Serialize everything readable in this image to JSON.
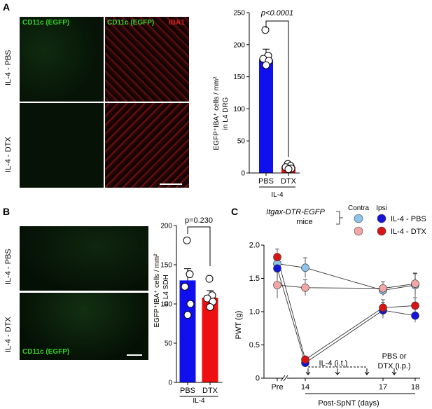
{
  "panels": {
    "A": {
      "letter": "A",
      "col_labels": [
        "CD11c (EGFP)",
        "CD11c (EGFP)",
        "IBA1"
      ],
      "row_labels": [
        "IL-4 - PBS",
        "IL-4 - DTX"
      ],
      "chart": {
        "ylabel_line1": "EGFP⁺IBA⁺ cells / mm²",
        "ylabel_line2": "in L4 DRG",
        "pvalue": "p<0.0001",
        "group_label": "IL-4"
      }
    },
    "B": {
      "letter": "B",
      "row_labels": [
        "IL-4 - PBS",
        "IL-4 - DTX"
      ],
      "image_label": "CD11c (EGFP)",
      "chart": {
        "ylabel_line1": "EGFP⁺IBA⁺ cells / mm²",
        "ylabel_line2": "in L4 SDH",
        "pvalue": "p=0.230",
        "group_label": "IL-4"
      }
    },
    "C": {
      "letter": "C",
      "mouse_line1": "Itgax-DTR-EGFP",
      "mouse_line2": "mice",
      "legend_contra": "Contra",
      "legend_ipsi": "Ipsi",
      "legend_pbs": "IL-4 - PBS",
      "legend_dtx": "IL-4 - DTX",
      "ylabel": "PWT (g)",
      "xlabel": "Post-SpNT (days)",
      "annot_il4": "IL-4 (i.t.)",
      "annot_pbs1": "PBS or",
      "annot_pbs2": "DTX (i.p.)"
    }
  },
  "colors": {
    "pbs_bar": "#1010ee",
    "dtx_bar": "#ee1010",
    "contra_pbs": "#8ec3ea",
    "contra_dtx": "#f2a6a6",
    "ipsi_pbs": "#1515d8",
    "ipsi_dtx": "#d81515"
  },
  "chart_data": [
    {
      "type": "bar",
      "panel": "A",
      "categories": [
        "PBS",
        "DTX"
      ],
      "values": [
        177,
        10
      ],
      "errors": [
        16,
        3
      ],
      "points": [
        [
          223,
          183,
          178,
          175,
          168
        ],
        [
          14,
          11,
          9,
          7,
          6
        ]
      ],
      "ylim": [
        0,
        250
      ],
      "yticks": [
        0,
        50,
        100,
        150,
        200,
        250
      ]
    },
    {
      "type": "bar",
      "panel": "B",
      "categories": [
        "PBS",
        "DTX"
      ],
      "values": [
        130,
        108
      ],
      "errors": [
        15,
        9
      ],
      "points": [
        [
          181,
          138,
          122,
          100,
          86
        ],
        [
          132,
          111,
          107,
          103,
          96
        ]
      ],
      "ylim": [
        0,
        200
      ],
      "yticks": [
        0,
        50,
        100,
        150,
        200
      ]
    },
    {
      "type": "line",
      "panel": "C",
      "x_labels": [
        "Pre",
        "14",
        "17",
        "18"
      ],
      "ylim": [
        0,
        2.0
      ],
      "yticks": [
        "0",
        "0.5",
        "1.0",
        "1.5",
        "2.0"
      ],
      "series": [
        {
          "values": [
            1.72,
            1.66,
            1.32,
            1.4
          ],
          "errors": [
            0.15,
            0.15,
            0.08,
            0.18
          ]
        },
        {
          "values": [
            1.4,
            1.36,
            1.35,
            1.42
          ],
          "errors": [
            0.2,
            0.12,
            0.1,
            0.15
          ]
        },
        {
          "values": [
            1.65,
            0.23,
            1.02,
            0.94
          ],
          "errors": [
            0.15,
            0.03,
            0.12,
            0.1
          ]
        },
        {
          "values": [
            1.82,
            0.28,
            1.06,
            1.09
          ],
          "errors": [
            0.12,
            0.04,
            0.12,
            0.12
          ]
        }
      ]
    }
  ]
}
